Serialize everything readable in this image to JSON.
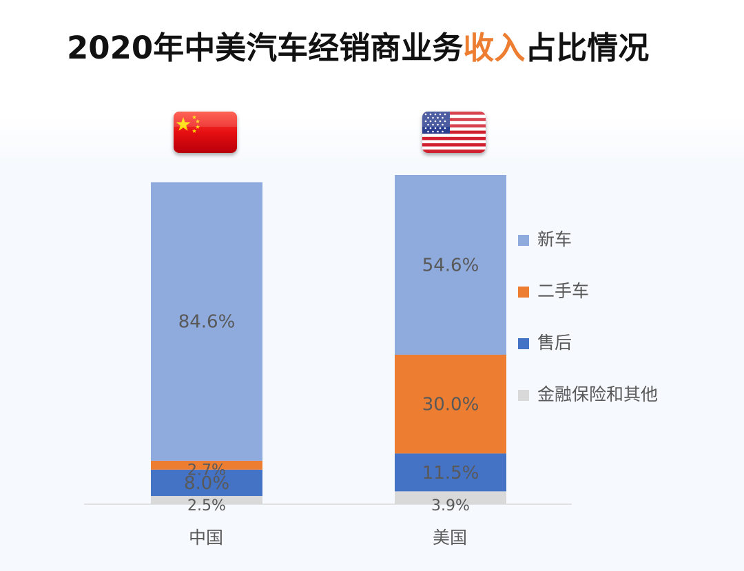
{
  "title": {
    "prefix": "2020年中美汽车经销商业务",
    "highlight": "收入",
    "suffix": "占比情况",
    "highlight_color": "#ed7d31"
  },
  "flags": [
    {
      "country": "中国",
      "icon": "china-flag-icon"
    },
    {
      "country": "美国",
      "icon": "usa-flag-icon"
    }
  ],
  "chart_data": {
    "type": "bar",
    "stacked": true,
    "normalized_percent": true,
    "categories": [
      "中国",
      "美国"
    ],
    "series": [
      {
        "name": "金融保险和其他",
        "color": "#d9d9d9",
        "values": [
          2.5,
          3.9
        ],
        "labels": [
          "2.5%",
          "3.9%"
        ]
      },
      {
        "name": "售后",
        "color": "#4472c4",
        "values": [
          8.0,
          11.5
        ],
        "labels": [
          "8.0%",
          "11.5%"
        ]
      },
      {
        "name": "二手车",
        "color": "#ed7d31",
        "values": [
          2.7,
          30.0
        ],
        "labels": [
          "2.7%",
          "30.0%"
        ]
      },
      {
        "name": "新车",
        "color": "#8faadc",
        "values": [
          84.6,
          54.6
        ],
        "labels": [
          "84.6%",
          "54.6%"
        ]
      }
    ],
    "legend": {
      "position": "right",
      "order": [
        "新车",
        "二手车",
        "售后",
        "金融保险和其他"
      ]
    },
    "ylim": [
      0,
      100
    ],
    "grid": false,
    "xlabel": "",
    "ylabel": ""
  }
}
